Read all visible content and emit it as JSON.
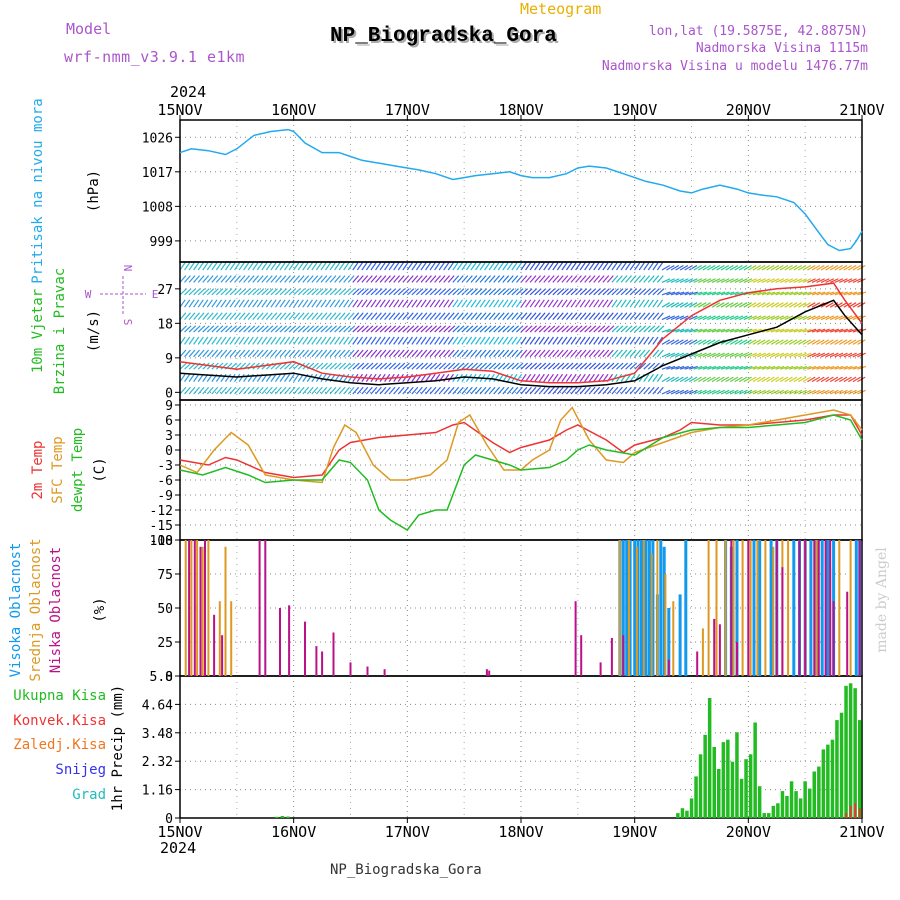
{
  "header": {
    "model_label": "Model",
    "model_name": "wrf-nmm_v3.9.1 e1km",
    "meteogram_label": "Meteogram",
    "station_title": "NP_Biogradska_Gora",
    "lonlat": "lon,lat (19.5875E, 42.8875N)",
    "elevation": "Nadmorska Visina 1115m",
    "model_elevation": "Nadmorska Visina u modelu 1476.77m",
    "year": "2024",
    "footer_station": "NP_Biogradska_Gora",
    "credit": "made by Angel"
  },
  "colors": {
    "purple": "#aa55cc",
    "orange": "#e8b000",
    "pressure": "#22aaee",
    "temp2m": "#ee3333",
    "tsfc": "#dd9922",
    "dewpt": "#22bb22",
    "cloud_high": "#1199ee",
    "cloud_mid": "#dd9922",
    "cloud_low": "#bb1188",
    "precip_total": "#22bb22",
    "precip_conv": "#ee3333",
    "precip_frozen": "#ee7722",
    "precip_snow": "#3333ee",
    "precip_hail": "#22bbbb",
    "wind_line": "#000000",
    "wind_peak": "#ee3333"
  },
  "chart_data": [
    {
      "type": "line",
      "panel": "pressure",
      "ylabel_side": "Pritisak na nivou mora",
      "ylabel_unit": "(hPa)",
      "yticks": [
        999,
        1008,
        1017,
        1026
      ],
      "ylim": [
        993.5,
        1030.5
      ],
      "x_tick_labels": [
        "15NOV",
        "16NOV",
        "17NOV",
        "18NOV",
        "19NOV",
        "20NOV",
        "21NOV"
      ],
      "grid": true,
      "series": [
        {
          "color_key": "pressure",
          "x": [
            0,
            0.1,
            0.25,
            0.4,
            0.5,
            0.65,
            0.8,
            0.95,
            1.0,
            1.1,
            1.25,
            1.4,
            1.5,
            1.6,
            1.7,
            1.8,
            1.9,
            2.0,
            2.1,
            2.25,
            2.4,
            2.5,
            2.6,
            2.75,
            2.9,
            3.0,
            3.1,
            3.25,
            3.4,
            3.5,
            3.6,
            3.75,
            3.9,
            4.0,
            4.1,
            4.25,
            4.4,
            4.5,
            4.6,
            4.75,
            4.9,
            5.0,
            5.1,
            5.25,
            5.4,
            5.5,
            5.6,
            5.7,
            5.8,
            5.9,
            5.95,
            6.0
          ],
          "values": [
            1022,
            1023,
            1022.5,
            1021.5,
            1023,
            1026.5,
            1027.5,
            1028,
            1027.5,
            1024.5,
            1022,
            1022,
            1021,
            1020,
            1019.5,
            1019,
            1018.5,
            1018,
            1017.5,
            1016.5,
            1015,
            1015.5,
            1016,
            1016.5,
            1017,
            1016,
            1015.5,
            1015.5,
            1016.5,
            1018,
            1018.5,
            1018,
            1016.5,
            1015.5,
            1014.5,
            1013.5,
            1012,
            1011.5,
            1012.5,
            1013.5,
            1012.5,
            1011.5,
            1011,
            1010.5,
            1009,
            1006,
            1002,
            998,
            996.5,
            997,
            999,
            1001.5
          ]
        }
      ]
    },
    {
      "type": "line",
      "panel": "wind",
      "ylabel_side": "10m Vjetar Brzina i Pravac",
      "ylabel_unit": "(m/s)",
      "compass_labels": [
        "N",
        "W",
        "E",
        "S"
      ],
      "yticks": [
        0,
        9,
        18,
        27
      ],
      "ylim": [
        -2,
        34
      ],
      "grid": true,
      "series": [
        {
          "name_key": "speed",
          "color_key": "wind_line",
          "x": [
            0,
            0.25,
            0.5,
            0.75,
            1.0,
            1.25,
            1.5,
            1.75,
            2.0,
            2.25,
            2.5,
            2.75,
            3.0,
            3.25,
            3.5,
            3.75,
            4.0,
            4.25,
            4.5,
            4.75,
            5.0,
            5.25,
            5.5,
            5.75,
            5.85,
            6.0
          ],
          "values": [
            5,
            4.5,
            4,
            4.5,
            5,
            3.5,
            2.5,
            2,
            2.5,
            3,
            4,
            3.5,
            2,
            1.5,
            1.5,
            2,
            3,
            7,
            10,
            13,
            15,
            17,
            21,
            24,
            20,
            15
          ]
        },
        {
          "name_key": "gust",
          "color_key": "wind_peak",
          "x": [
            0,
            0.25,
            0.5,
            0.75,
            1.0,
            1.25,
            1.5,
            1.75,
            2.0,
            2.25,
            2.5,
            2.75,
            3.0,
            3.25,
            3.5,
            3.75,
            4.0,
            4.25,
            4.5,
            4.75,
            5.0,
            5.25,
            5.5,
            5.75,
            5.85,
            6.0
          ],
          "values": [
            8,
            7,
            6,
            7,
            8,
            5,
            4,
            3.5,
            4,
            5,
            6,
            5.5,
            3,
            2.5,
            2.5,
            3,
            5,
            14,
            20,
            24,
            26,
            27,
            27.5,
            28.5,
            24,
            18
          ]
        }
      ]
    },
    {
      "type": "line",
      "panel": "temperature",
      "ylabel_side": [
        "2m Temp",
        "SFC Temp",
        "dewpt Temp"
      ],
      "ylabel_unit": "(C)",
      "yticks": [
        -18,
        -15,
        -12,
        -9,
        -6,
        -3,
        0,
        3,
        6,
        9
      ],
      "ylim": [
        -18,
        10
      ],
      "grid": true,
      "series": [
        {
          "name": "2m Temp",
          "color_key": "temp2m",
          "x": [
            0,
            0.25,
            0.4,
            0.5,
            0.75,
            1.0,
            1.25,
            1.4,
            1.5,
            1.75,
            2.0,
            2.25,
            2.4,
            2.5,
            2.75,
            2.9,
            3.0,
            3.25,
            3.4,
            3.5,
            3.75,
            3.9,
            4.0,
            4.25,
            4.4,
            4.5,
            4.75,
            5.0,
            5.25,
            5.5,
            5.75,
            5.9,
            6.0
          ],
          "values": [
            -2,
            -3,
            -1.5,
            -2,
            -4.5,
            -5.5,
            -5,
            0,
            1.5,
            2.5,
            3,
            3.5,
            5,
            5.5,
            1.5,
            -0.5,
            0.5,
            2,
            4,
            5,
            2,
            -0.5,
            1,
            2.5,
            4,
            5.5,
            5,
            5,
            5.5,
            6,
            7,
            7,
            3
          ]
        },
        {
          "name": "SFC Temp",
          "color_key": "tsfc",
          "x": [
            0,
            0.15,
            0.3,
            0.45,
            0.6,
            0.75,
            1.0,
            1.25,
            1.35,
            1.45,
            1.55,
            1.7,
            1.85,
            2.0,
            2.2,
            2.35,
            2.45,
            2.55,
            2.7,
            2.85,
            3.0,
            3.1,
            3.25,
            3.35,
            3.45,
            3.6,
            3.75,
            3.9,
            4.0,
            4.25,
            4.5,
            4.75,
            5.0,
            5.25,
            5.5,
            5.75,
            5.9,
            6.0
          ],
          "values": [
            -3,
            -4.5,
            0,
            3.5,
            1,
            -5,
            -6,
            -6.5,
            0.5,
            5,
            3.5,
            -3,
            -6,
            -6,
            -5,
            -2,
            5.5,
            7,
            1,
            -4,
            -4,
            -2,
            0,
            6,
            8.5,
            2,
            -2,
            -2.5,
            -0.5,
            1.5,
            3.5,
            4.5,
            5,
            6,
            7,
            8,
            7,
            4
          ]
        },
        {
          "name": "dewpt Temp",
          "color_key": "dewpt",
          "x": [
            0,
            0.2,
            0.4,
            0.6,
            0.75,
            1.0,
            1.25,
            1.4,
            1.5,
            1.65,
            1.75,
            1.85,
            2.0,
            2.1,
            2.25,
            2.35,
            2.5,
            2.6,
            2.75,
            2.9,
            3.0,
            3.25,
            3.4,
            3.5,
            3.6,
            3.75,
            4.0,
            4.25,
            4.5,
            4.75,
            5.0,
            5.25,
            5.5,
            5.75,
            5.9,
            6.0
          ],
          "values": [
            -4,
            -5,
            -3.5,
            -5,
            -6.5,
            -6,
            -6,
            -2,
            -2.5,
            -6,
            -12,
            -14,
            -16,
            -13,
            -12,
            -12,
            -3,
            -1,
            -2,
            -3,
            -4,
            -3.5,
            -2,
            0,
            1,
            0,
            -1,
            2.5,
            4,
            4.5,
            4.5,
            5,
            5.5,
            7,
            6,
            2
          ]
        }
      ]
    },
    {
      "type": "bar",
      "panel": "clouds",
      "ylabel_side": [
        "Visoka Oblacnost",
        "Srednja Oblacnost",
        "Niska Oblacnost"
      ],
      "ylabel_unit": "(%)",
      "yticks": [
        0,
        25,
        50,
        75,
        100
      ],
      "ylim": [
        0,
        100
      ],
      "grid": true,
      "series": [
        {
          "name": "Visoka Oblacnost",
          "color_key": "cloud_high",
          "x": [
            3.87,
            3.9,
            3.93,
            3.96,
            4.0,
            4.03,
            4.06,
            4.1,
            4.13,
            4.16,
            4.2,
            4.23,
            4.26,
            4.3,
            4.4,
            4.45,
            4.8,
            4.85,
            4.9,
            5.05,
            5.1,
            5.2,
            5.25,
            5.4,
            5.45,
            5.5,
            5.55,
            5.6,
            5.65,
            5.7,
            5.75,
            5.95,
            5.98
          ],
          "values": [
            100,
            100,
            100,
            100,
            100,
            100,
            100,
            100,
            100,
            100,
            60,
            100,
            95,
            50,
            60,
            100,
            100,
            95,
            100,
            100,
            100,
            100,
            100,
            100,
            100,
            100,
            100,
            100,
            100,
            100,
            100,
            100,
            100
          ]
        },
        {
          "name": "Srednja Oblacnost",
          "color_key": "cloud_mid",
          "x": [
            0.05,
            0.1,
            0.15,
            0.2,
            0.25,
            0.35,
            0.4,
            0.45,
            3.87,
            3.95,
            4.02,
            4.08,
            4.15,
            4.2,
            4.27,
            4.34,
            4.6,
            4.65,
            4.72,
            4.8,
            4.87,
            4.95,
            5.02,
            5.08,
            5.15,
            5.22,
            5.3,
            5.35,
            5.5,
            5.6,
            5.72,
            5.8,
            5.9
          ],
          "values": [
            100,
            100,
            100,
            95,
            100,
            55,
            95,
            55,
            100,
            100,
            95,
            100,
            90,
            100,
            75,
            55,
            35,
            100,
            100,
            100,
            100,
            100,
            100,
            100,
            100,
            95,
            100,
            100,
            100,
            100,
            80,
            100,
            100
          ]
        },
        {
          "name": "Niska Oblacnost",
          "color_key": "cloud_low",
          "x": [
            0.08,
            0.13,
            0.18,
            0.22,
            0.3,
            0.37,
            0.7,
            0.75,
            0.88,
            0.96,
            1.1,
            1.2,
            1.25,
            1.35,
            1.5,
            1.65,
            1.8,
            2.7,
            2.72,
            3.48,
            3.53,
            3.7,
            3.8,
            3.9,
            4.3,
            4.55,
            4.7,
            4.75,
            4.85,
            4.9,
            5.0,
            5.25,
            5.3,
            5.45,
            5.5,
            5.58,
            5.62,
            5.68,
            5.72,
            5.75,
            5.87,
            5.98
          ],
          "values": [
            100,
            100,
            95,
            100,
            45,
            30,
            100,
            100,
            50,
            52,
            40,
            22,
            18,
            32,
            10,
            7,
            5,
            5,
            4,
            55,
            30,
            10,
            28,
            30,
            12,
            18,
            42,
            38,
            100,
            25,
            100,
            100,
            80,
            100,
            100,
            100,
            100,
            100,
            100,
            55,
            62,
            100
          ]
        }
      ]
    },
    {
      "type": "bar",
      "panel": "precip",
      "ylabel_side": "1hr Precip (mm)",
      "legend": [
        "Ukupna Kisa",
        "Konvek.Kisa",
        "Zaledj.Kisa",
        "Snijeg",
        "Grad"
      ],
      "yticks": [
        0,
        1.16,
        2.32,
        3.48,
        4.64,
        5.8
      ],
      "ylim": [
        0,
        5.8
      ],
      "grid": true,
      "series": [
        {
          "name": "Ukupna Kisa",
          "color_key": "precip_total",
          "x": [
            0.85,
            0.9,
            0.95,
            4.38,
            4.42,
            4.46,
            4.5,
            4.54,
            4.58,
            4.62,
            4.66,
            4.7,
            4.74,
            4.78,
            4.82,
            4.86,
            4.9,
            4.94,
            4.98,
            5.02,
            5.06,
            5.1,
            5.14,
            5.18,
            5.22,
            5.26,
            5.3,
            5.34,
            5.38,
            5.42,
            5.46,
            5.5,
            5.54,
            5.58,
            5.62,
            5.66,
            5.7,
            5.74,
            5.78,
            5.82,
            5.86,
            5.9,
            5.94,
            5.98
          ],
          "values": [
            0.05,
            0.08,
            0.06,
            0.2,
            0.4,
            0.3,
            0.8,
            1.7,
            2.6,
            3.4,
            4.9,
            2.9,
            2.0,
            3.1,
            3.2,
            2.3,
            3.5,
            1.6,
            2.4,
            2.6,
            3.9,
            1.3,
            0.2,
            0.2,
            0.5,
            0.6,
            1.1,
            0.9,
            1.5,
            1.1,
            0.8,
            1.5,
            1.2,
            1.9,
            2.1,
            2.8,
            3.0,
            3.2,
            4.0,
            4.3,
            5.4,
            5.5,
            5.3,
            4.0
          ]
        },
        {
          "name": "Konvek.Kisa",
          "color_key": "precip_conv",
          "x": [
            5.86,
            5.9,
            5.94,
            5.98
          ],
          "values": [
            0.2,
            0.5,
            0.6,
            0.4
          ]
        }
      ]
    }
  ]
}
